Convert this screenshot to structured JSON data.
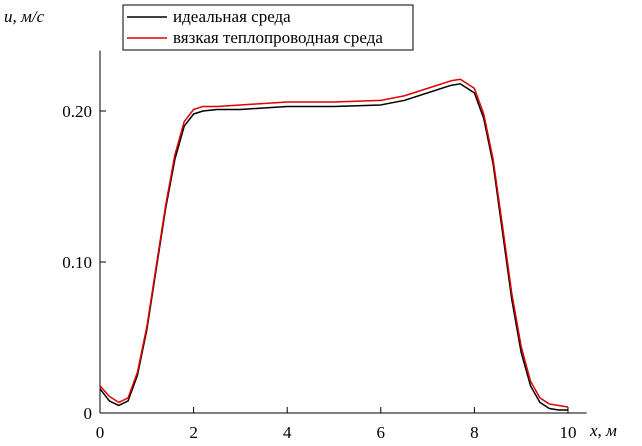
{
  "chart_data": {
    "type": "line",
    "ylabel": "u, м/с",
    "xlabel": "x, м",
    "x": [
      0,
      0.2,
      0.4,
      0.6,
      0.8,
      1.0,
      1.2,
      1.4,
      1.6,
      1.8,
      2.0,
      2.2,
      2.5,
      3,
      4,
      5,
      6,
      6.5,
      7,
      7.5,
      7.7,
      8,
      8.2,
      8.4,
      8.6,
      8.8,
      9.0,
      9.2,
      9.4,
      9.6,
      9.8,
      10
    ],
    "series": [
      {
        "name": "идеальная среда",
        "color": "#000000",
        "values": [
          0.016,
          0.008,
          0.005,
          0.008,
          0.025,
          0.055,
          0.095,
          0.135,
          0.168,
          0.19,
          0.198,
          0.2,
          0.201,
          0.201,
          0.203,
          0.203,
          0.204,
          0.207,
          0.212,
          0.217,
          0.218,
          0.212,
          0.195,
          0.165,
          0.12,
          0.075,
          0.04,
          0.018,
          0.007,
          0.003,
          0.002,
          0.002
        ]
      },
      {
        "name": "вязкая теплопроводная среда",
        "color": "#e00000",
        "values": [
          0.018,
          0.011,
          0.007,
          0.01,
          0.027,
          0.057,
          0.097,
          0.137,
          0.171,
          0.193,
          0.201,
          0.203,
          0.203,
          0.204,
          0.206,
          0.206,
          0.207,
          0.21,
          0.215,
          0.22,
          0.221,
          0.215,
          0.198,
          0.168,
          0.124,
          0.079,
          0.044,
          0.021,
          0.01,
          0.006,
          0.005,
          0.004
        ]
      }
    ],
    "xlim": [
      0,
      10.4
    ],
    "ylim": [
      0,
      0.24
    ],
    "xticks": [
      0,
      2,
      4,
      6,
      8,
      10
    ],
    "yticks": [
      0,
      {
        "value": 0.1,
        "label": "0.10"
      },
      {
        "value": 0.2,
        "label": "0.20"
      }
    ],
    "legend": "top-left"
  }
}
